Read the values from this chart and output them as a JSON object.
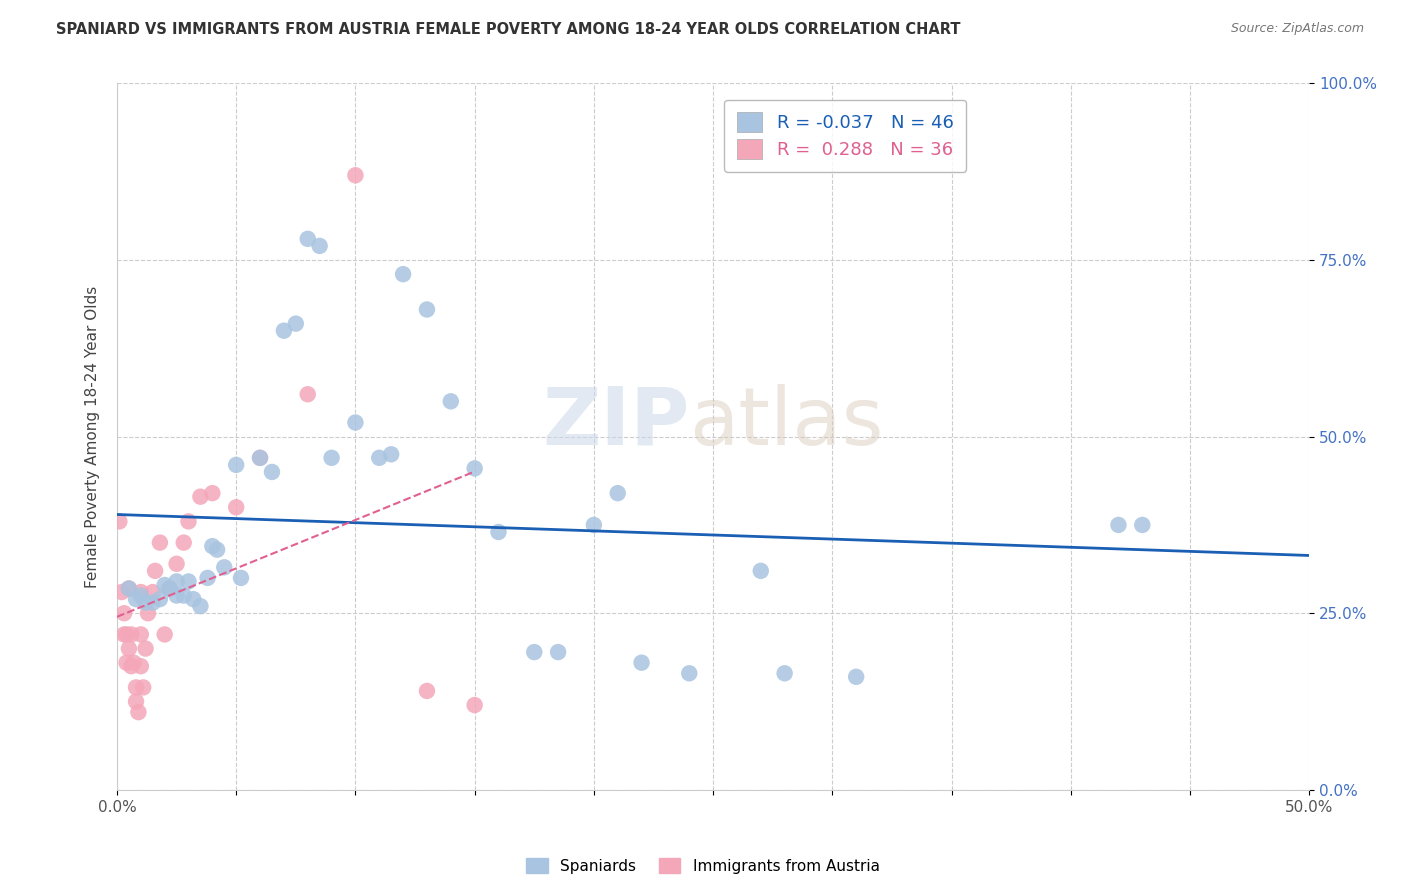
{
  "title": "SPANIARD VS IMMIGRANTS FROM AUSTRIA FEMALE POVERTY AMONG 18-24 YEAR OLDS CORRELATION CHART",
  "source": "Source: ZipAtlas.com",
  "ylabel": "Female Poverty Among 18-24 Year Olds",
  "xlim": [
    0.0,
    0.5
  ],
  "ylim": [
    0.0,
    1.0
  ],
  "xticks": [
    0.0,
    0.05,
    0.1,
    0.15,
    0.2,
    0.25,
    0.3,
    0.35,
    0.4,
    0.45,
    0.5
  ],
  "xtick_labels_show": [
    "0.0%",
    "",
    "",
    "",
    "",
    "",
    "",
    "",
    "",
    "",
    "50.0%"
  ],
  "yticks": [
    0.0,
    0.25,
    0.5,
    0.75,
    1.0
  ],
  "ytick_labels": [
    "0.0%",
    "25.0%",
    "50.0%",
    "75.0%",
    "100.0%"
  ],
  "spaniards_color": "#a8c4e0",
  "austria_color": "#f4a7b9",
  "trend_spain_color": "#1a5fb4",
  "trend_austria_color": "#e06090",
  "watermark_color": "#ccd8e8",
  "R_spain": -0.037,
  "N_spain": 46,
  "R_austria": 0.288,
  "N_austria": 36,
  "spaniards_x": [
    0.005,
    0.008,
    0.01,
    0.012,
    0.015,
    0.018,
    0.02,
    0.022,
    0.025,
    0.025,
    0.028,
    0.03,
    0.032,
    0.035,
    0.038,
    0.04,
    0.042,
    0.045,
    0.05,
    0.052,
    0.06,
    0.065,
    0.07,
    0.075,
    0.08,
    0.085,
    0.09,
    0.1,
    0.11,
    0.115,
    0.12,
    0.13,
    0.14,
    0.15,
    0.16,
    0.175,
    0.185,
    0.2,
    0.21,
    0.22,
    0.24,
    0.27,
    0.28,
    0.31,
    0.42,
    0.43
  ],
  "spaniards_y": [
    0.285,
    0.27,
    0.275,
    0.265,
    0.265,
    0.27,
    0.29,
    0.285,
    0.295,
    0.275,
    0.275,
    0.295,
    0.27,
    0.26,
    0.3,
    0.345,
    0.34,
    0.315,
    0.46,
    0.3,
    0.47,
    0.45,
    0.65,
    0.66,
    0.78,
    0.77,
    0.47,
    0.52,
    0.47,
    0.475,
    0.73,
    0.68,
    0.55,
    0.455,
    0.365,
    0.195,
    0.195,
    0.375,
    0.42,
    0.18,
    0.165,
    0.31,
    0.165,
    0.16,
    0.375,
    0.375
  ],
  "austria_x": [
    0.001,
    0.002,
    0.003,
    0.003,
    0.004,
    0.004,
    0.005,
    0.005,
    0.006,
    0.006,
    0.007,
    0.008,
    0.008,
    0.009,
    0.01,
    0.01,
    0.01,
    0.011,
    0.012,
    0.013,
    0.015,
    0.016,
    0.018,
    0.02,
    0.022,
    0.025,
    0.028,
    0.03,
    0.035,
    0.04,
    0.05,
    0.06,
    0.08,
    0.1,
    0.13,
    0.15
  ],
  "austria_y": [
    0.38,
    0.28,
    0.25,
    0.22,
    0.22,
    0.18,
    0.285,
    0.2,
    0.22,
    0.175,
    0.18,
    0.145,
    0.125,
    0.11,
    0.28,
    0.22,
    0.175,
    0.145,
    0.2,
    0.25,
    0.28,
    0.31,
    0.35,
    0.22,
    0.285,
    0.32,
    0.35,
    0.38,
    0.415,
    0.42,
    0.4,
    0.47,
    0.56,
    0.87,
    0.14,
    0.12
  ]
}
